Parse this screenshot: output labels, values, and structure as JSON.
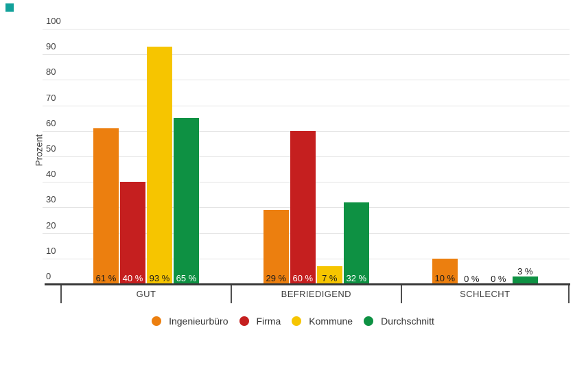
{
  "corner_mark": {
    "color": "#12a19a"
  },
  "chart_data": {
    "type": "bar",
    "title": "",
    "ylabel": "Prozent",
    "xlabel": "",
    "categories": [
      "GUT",
      "BEFRIEDIGEND",
      "SCHLECHT"
    ],
    "series": [
      {
        "name": "Ingenieurbüro",
        "color": "#ec7f0f",
        "label_color": "#1a1a1a",
        "values": [
          61,
          29,
          10
        ],
        "labels": [
          "61 %",
          "29 %",
          "10 %"
        ]
      },
      {
        "name": "Firma",
        "color": "#c51f1f",
        "label_color": "#ffffff",
        "values": [
          40,
          60,
          0
        ],
        "labels": [
          "40 %",
          "60 %",
          "0 %"
        ]
      },
      {
        "name": "Kommune",
        "color": "#f6c500",
        "label_color": "#1a1a1a",
        "values": [
          93,
          7,
          0
        ],
        "labels": [
          "93 %",
          "7 %",
          "0 %"
        ]
      },
      {
        "name": "Durchschnitt",
        "color": "#0e9143",
        "label_color": "#ffffff",
        "values": [
          65,
          32,
          3
        ],
        "labels": [
          "65 %",
          "32 %",
          "3 %"
        ]
      }
    ],
    "ylim": [
      0,
      100
    ],
    "yticks": [
      0,
      10,
      20,
      30,
      40,
      50,
      60,
      70,
      80,
      90,
      100
    ],
    "grid": true,
    "legend_position": "bottom",
    "value_label_format": "{value} %"
  }
}
